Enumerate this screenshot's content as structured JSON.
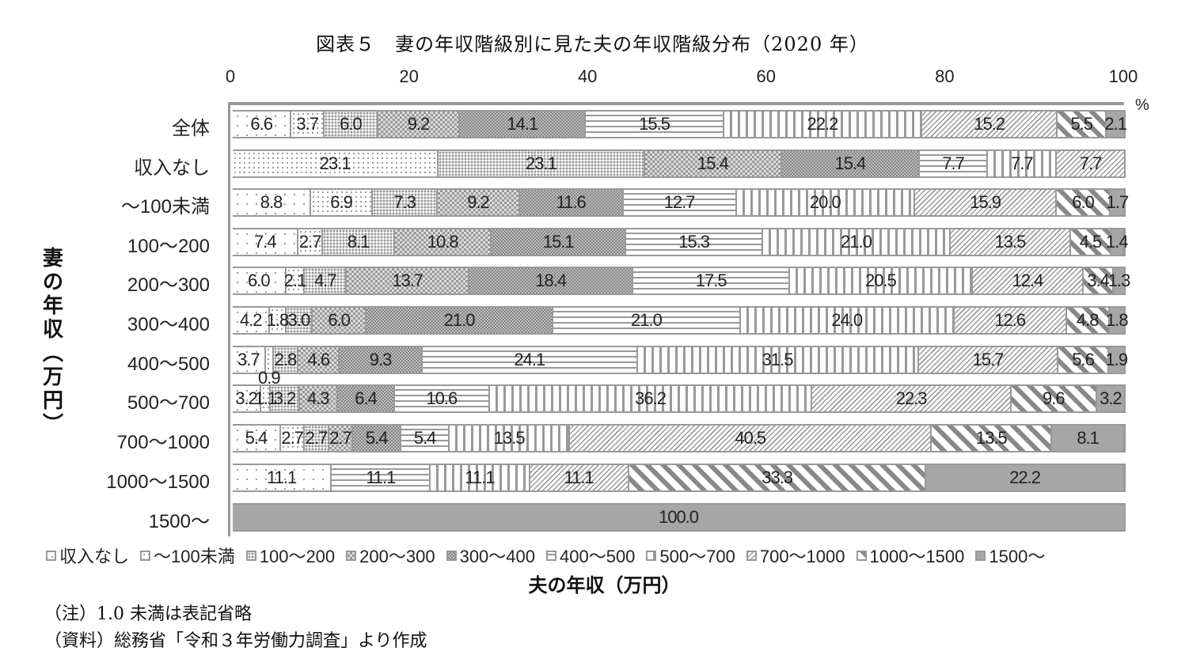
{
  "chart_data": {
    "type": "bar",
    "orientation": "horizontal",
    "stacked": true,
    "title": "図表５　妻の年収階級別に見た夫の年収階級分布（2020 年）",
    "xlabel": "夫の年収（万円）",
    "ylabel": "妻の年収（万円）",
    "x_unit": "%",
    "xlim": [
      0,
      100
    ],
    "x_ticks": [
      "0",
      "20",
      "40",
      "60",
      "80",
      "100"
    ],
    "legend_position": "bottom",
    "categories": [
      "全体",
      "収入なし",
      "～100未満",
      "100～200",
      "200～300",
      "300～400",
      "400～500",
      "500～700",
      "700～1000",
      "1000～1500",
      "1500～"
    ],
    "series": [
      {
        "name": "収入なし",
        "values": [
          6.6,
          0,
          8.8,
          7.4,
          6.0,
          4.2,
          3.7,
          3.2,
          5.4,
          11.1,
          0
        ]
      },
      {
        "name": "～100未満",
        "values": [
          3.7,
          23.1,
          6.9,
          2.7,
          2.1,
          1.8,
          0.9,
          1.1,
          2.7,
          0,
          0
        ]
      },
      {
        "name": "100～200",
        "values": [
          6.0,
          23.1,
          7.3,
          8.1,
          4.7,
          3.0,
          2.8,
          3.2,
          2.7,
          0,
          0
        ]
      },
      {
        "name": "200～300",
        "values": [
          9.2,
          15.4,
          9.2,
          10.8,
          13.7,
          6.0,
          4.6,
          4.3,
          2.7,
          0,
          0
        ]
      },
      {
        "name": "300～400",
        "values": [
          14.1,
          15.4,
          11.6,
          15.1,
          18.4,
          21.0,
          9.3,
          6.4,
          5.4,
          0,
          0
        ]
      },
      {
        "name": "400～500",
        "values": [
          15.5,
          7.7,
          12.7,
          15.3,
          17.5,
          21.0,
          24.1,
          10.6,
          5.4,
          11.1,
          0
        ]
      },
      {
        "name": "500～700",
        "values": [
          22.2,
          7.7,
          20.0,
          21.0,
          20.5,
          24.0,
          31.5,
          36.2,
          13.5,
          11.1,
          0
        ]
      },
      {
        "name": "700～1000",
        "values": [
          15.2,
          7.7,
          15.9,
          13.5,
          12.4,
          12.6,
          15.7,
          22.3,
          40.5,
          11.1,
          0
        ]
      },
      {
        "name": "1000～1500",
        "values": [
          5.5,
          0,
          6.0,
          4.5,
          3.4,
          4.8,
          5.6,
          9.6,
          13.5,
          33.3,
          0
        ]
      },
      {
        "name": "1500～",
        "values": [
          2.1,
          0,
          1.7,
          1.4,
          1.3,
          1.8,
          1.9,
          3.2,
          8.1,
          22.2,
          100.0
        ]
      }
    ],
    "grid": false
  },
  "title": "図表５　妻の年収階級別に見た夫の年収階級分布（2020 年）",
  "x_axis": {
    "ticks": [
      "0",
      "20",
      "40",
      "60",
      "80",
      "100"
    ],
    "unit": "%",
    "title": "夫の年収（万円）"
  },
  "y_axis": {
    "title": "妻の年収（万円）"
  },
  "notes": [
    "（注）1.0 未満は表記省略",
    "（資料）総務省「令和３年労働力調査」より作成"
  ]
}
